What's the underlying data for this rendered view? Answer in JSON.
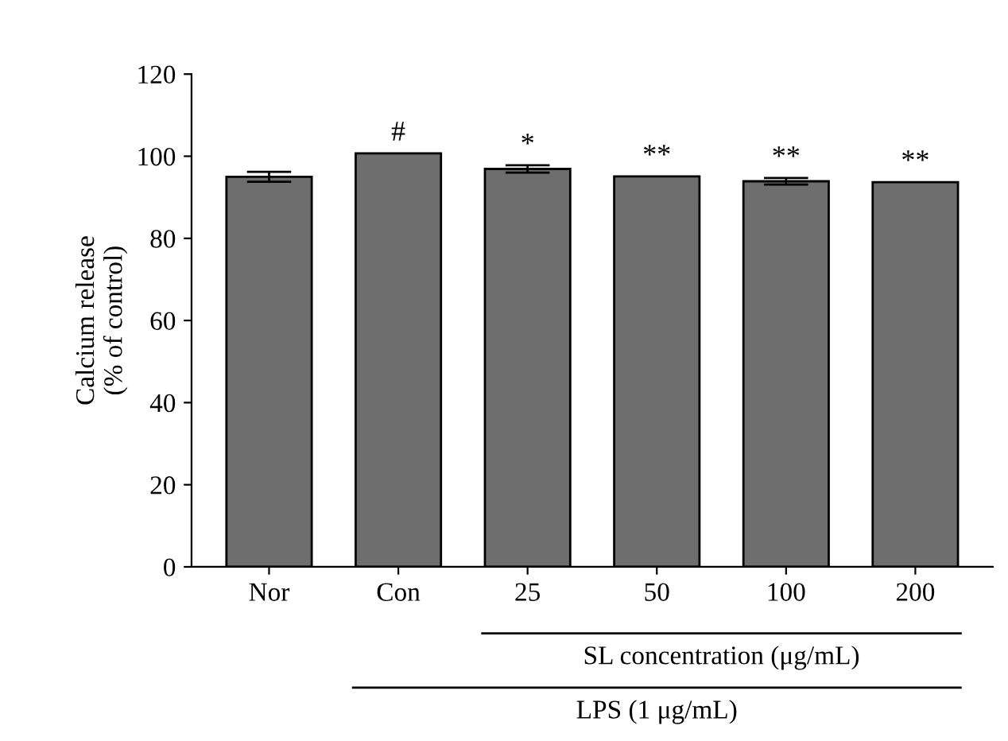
{
  "chart_data": {
    "type": "bar",
    "ylabel": "Calcium release\n(% of control)",
    "categories": [
      "Nor",
      "Con",
      "25",
      "50",
      "100",
      "200"
    ],
    "values": [
      95.0,
      100.7,
      96.9,
      95.1,
      93.9,
      93.7
    ],
    "errors": [
      1.2,
      null,
      0.9,
      null,
      0.8,
      null
    ],
    "color": "#6e6e6e",
    "ylim": [
      0,
      120
    ],
    "yticks": [
      0,
      20,
      40,
      60,
      80,
      100,
      120
    ],
    "grid": false,
    "annotations": [
      {
        "text": "#",
        "x": "Con",
        "y": 100.7
      },
      {
        "text": "*",
        "x": "25",
        "y": 97.8
      },
      {
        "text": "**",
        "x": "50",
        "y": 95.1
      },
      {
        "text": "**",
        "x": "100",
        "y": 94.7
      },
      {
        "text": "**",
        "x": "200",
        "y": 93.7
      },
      {
        "text": "SL concentration (μg/mL)"
      },
      {
        "text": "LPS (1 μg/mL)"
      }
    ]
  }
}
